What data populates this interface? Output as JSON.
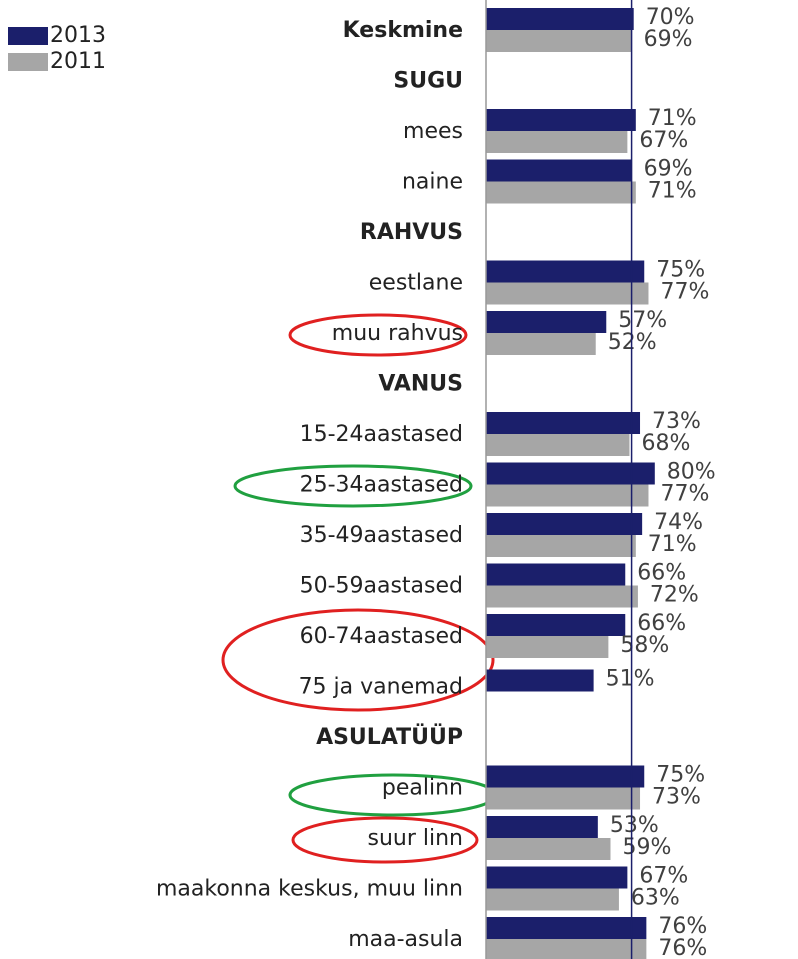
{
  "chart_data": {
    "type": "hbar",
    "categories": [
      "Keskmine",
      "SUGU",
      "mees",
      "naine",
      "RAHVUS",
      "eestlane",
      "muu rahvus",
      "VANUS",
      "15-24aastased",
      "25-34aastased",
      "35-49aastased",
      "50-59aastased",
      "60-74aastased",
      "75 ja vanemad",
      "ASULATÜÜP",
      "pealinn",
      "suur linn",
      "maakonna keskus, muu linn",
      "maa-asula"
    ],
    "bold_categories": [
      0,
      1,
      4,
      7,
      14
    ],
    "series": [
      {
        "name": "2013",
        "color": "#1b1f6b",
        "values": [
          70,
          null,
          71,
          69,
          null,
          75,
          57,
          null,
          73,
          80,
          74,
          66,
          66,
          51,
          null,
          75,
          53,
          67,
          76
        ],
        "value_labels": [
          "70%",
          null,
          "71%",
          "69%",
          null,
          "75%",
          "57%",
          null,
          "73%",
          "80%",
          "74%",
          "66%",
          "66%",
          "51%",
          null,
          "75%",
          "53%",
          "67%",
          "76%"
        ]
      },
      {
        "name": "2011",
        "color": "#a6a6a6",
        "values": [
          69,
          null,
          67,
          71,
          null,
          77,
          52,
          null,
          68,
          77,
          71,
          72,
          58,
          null,
          null,
          73,
          59,
          63,
          76
        ],
        "value_labels": [
          "69%",
          null,
          "67%",
          "71%",
          null,
          "77%",
          "52%",
          null,
          "68%",
          "77%",
          "71%",
          "72%",
          "58%",
          null,
          null,
          "73%",
          "59%",
          "63%",
          "76%"
        ]
      }
    ],
    "reference_line": 69,
    "xlim": [
      0,
      100
    ],
    "legend": "top-left"
  }
}
